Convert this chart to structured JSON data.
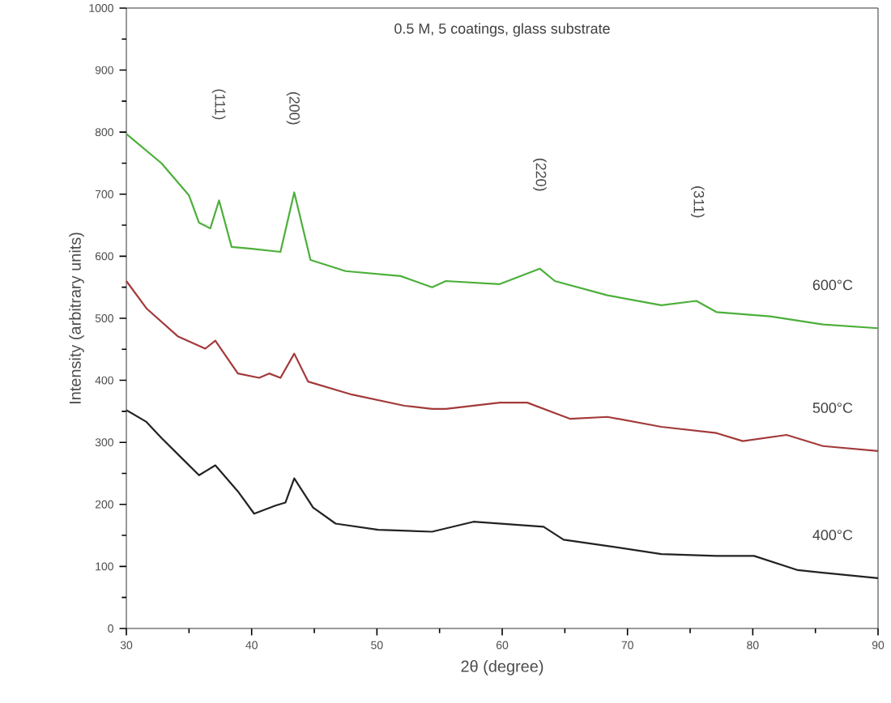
{
  "chart_data": {
    "type": "line",
    "title": "0.5 M, 5 coatings, glass substrate",
    "xlabel": "2θ (degree)",
    "ylabel": "Intensity (arbitrary units)",
    "xlim": [
      30,
      90
    ],
    "ylim": [
      0,
      1000
    ],
    "xticks": [
      30,
      40,
      50,
      60,
      70,
      80,
      90
    ],
    "yticks": [
      0,
      100,
      200,
      300,
      400,
      500,
      600,
      700,
      800,
      900,
      1000
    ],
    "grid": false,
    "legend": false,
    "marker": "none",
    "line_style": "solid",
    "series": [
      {
        "name": "600°C",
        "color": "#4caf3a",
        "x": [
          30,
          32.8,
          35,
          35.8,
          36.7,
          37.4,
          38.4,
          40,
          42.3,
          43.4,
          44.7,
          47.5,
          51.9,
          54.4,
          55.5,
          59.8,
          63,
          64.2,
          68.4,
          72.7,
          75.5,
          77.1,
          81.4,
          85.6,
          90
        ],
        "values": [
          797,
          750,
          698,
          654,
          645,
          690,
          615,
          612,
          607,
          703,
          594,
          576,
          568,
          550,
          560,
          555,
          580,
          560,
          537,
          521,
          528,
          510,
          503,
          490,
          484
        ]
      },
      {
        "name": "500°C",
        "color": "#a33a3a",
        "x": [
          30,
          31.6,
          34.1,
          36.3,
          37.1,
          38.9,
          40.6,
          41.4,
          42.3,
          43.4,
          44.5,
          48,
          52.2,
          54.4,
          55.5,
          59.8,
          62,
          65.4,
          68.4,
          72.7,
          77.1,
          79.2,
          82.7,
          85.6,
          90
        ],
        "values": [
          560,
          516,
          471,
          451,
          464,
          411,
          404,
          411,
          404,
          443,
          398,
          377,
          359,
          354,
          354,
          364,
          364,
          338,
          341,
          325,
          315,
          302,
          312,
          294,
          286
        ]
      },
      {
        "name": "400°C",
        "color": "#222222",
        "x": [
          30,
          31.6,
          32.8,
          34.5,
          35.8,
          37.1,
          38.9,
          40.2,
          41.9,
          42.7,
          43.4,
          44.9,
          46.7,
          50.1,
          54.4,
          57.7,
          63.3,
          64.9,
          68.4,
          72.7,
          77.1,
          80.1,
          83.6,
          90
        ],
        "values": [
          352,
          333,
          307,
          273,
          247,
          263,
          221,
          185,
          198,
          203,
          242,
          195,
          169,
          159,
          156,
          172,
          164,
          143,
          133,
          120,
          117,
          117,
          94,
          81
        ]
      }
    ],
    "annotations": [
      "(111)",
      "(200)",
      "(220)",
      "(311)"
    ]
  }
}
